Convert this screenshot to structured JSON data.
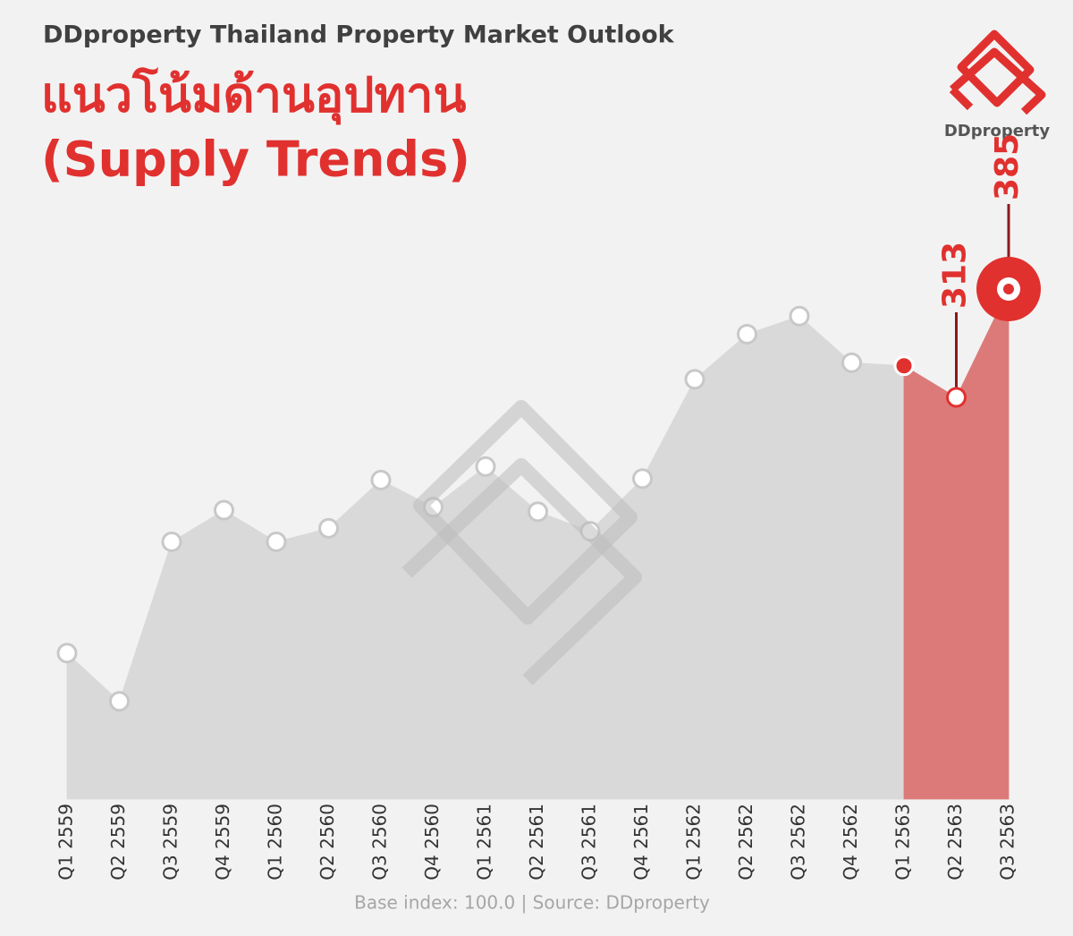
{
  "chart_data": {
    "type": "area",
    "brand_title": "DDproperty Thailand Property Market Outlook",
    "title": "แนวโน้มด้านอุปทาน",
    "subtitle": "(Supply Trends)",
    "logo_text": "DDproperty",
    "source": "Base index: 100.0 | Source: DDproperty",
    "categories": [
      "Q1 2559",
      "Q2 2559",
      "Q3 2559",
      "Q4 2559",
      "Q1 2560",
      "Q2 2560",
      "Q3 2560",
      "Q4 2560",
      "Q1 2561",
      "Q2 2561",
      "Q3 2561",
      "Q4 2561",
      "Q1 2562",
      "Q2 2562",
      "Q3 2562",
      "Q4 2562",
      "Q1 2563",
      "Q2 2563",
      "Q3 2563"
    ],
    "values": [
      143,
      111,
      217,
      238,
      217,
      226,
      258,
      240,
      267,
      237,
      224,
      259,
      325,
      355,
      367,
      336,
      334,
      313,
      385
    ],
    "value_labels": [
      null,
      null,
      null,
      null,
      null,
      null,
      null,
      null,
      null,
      null,
      null,
      null,
      null,
      null,
      null,
      null,
      null,
      "313",
      "385"
    ],
    "point_colors": [
      "#d9d9d9",
      "#d9d9d9",
      "#d9d9d9",
      "#d9d9d9",
      "#d9d9d9",
      "#d9d9d9",
      "#d9d9d9",
      "#d9d9d9",
      "#d9d9d9",
      "#d9d9d9",
      "#d9d9d9",
      "#d9d9d9",
      "#d9d9d9",
      "#d9d9d9",
      "#d9d9d9",
      "#d9d9d9",
      "#dc7a7a",
      "#dc7a7a",
      "#dc7a7a"
    ],
    "highlight_color": "#e0312f",
    "ylim": [
      46,
      385
    ]
  }
}
